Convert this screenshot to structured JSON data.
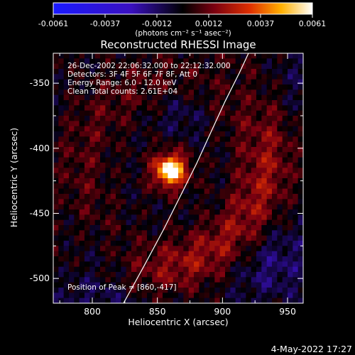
{
  "chart_data": {
    "type": "heatmap",
    "title": "Reconstructed RHESSI Image",
    "xlabel": "Heliocentric X (arcsec)",
    "ylabel": "Heliocentric Y (arcsec)",
    "xlim": [
      770,
      962
    ],
    "ylim": [
      -519,
      -327
    ],
    "x_ticks": [
      800,
      850,
      900,
      950
    ],
    "y_ticks": [
      -350,
      -400,
      -450,
      -500
    ],
    "colorbar": {
      "range": [
        -0.0061,
        0.0061
      ],
      "ticks": [
        "-0.0061",
        "-0.0037",
        "-0.0012",
        "0.0012",
        "0.0037",
        "0.0061"
      ],
      "units": "(photons cm⁻² s⁻¹ asec⁻²)",
      "colormap": "blue-black-red-yellow-white"
    },
    "annotations": [
      "26-Dec-2002 22:06:32.000 to 22:12:32.000",
      "Detectors: 3F 4F 5F 6F 7F 8F, Att 0",
      "Energy Range: 6.0 - 12.0 keV",
      "Clean    Total counts: 2.61E+04"
    ],
    "peak_label": "Position of Peak = [860,-417]",
    "peak": {
      "x": 860,
      "y": -417
    },
    "limb_curve": [
      [
        824,
        -519
      ],
      [
        840,
        -490
      ],
      [
        855,
        -462
      ],
      [
        868,
        -436
      ],
      [
        880,
        -412
      ],
      [
        891,
        -388
      ],
      [
        902,
        -364
      ],
      [
        913,
        -342
      ],
      [
        920,
        -327
      ]
    ],
    "timestamp": "4-May-2022 17:27"
  }
}
